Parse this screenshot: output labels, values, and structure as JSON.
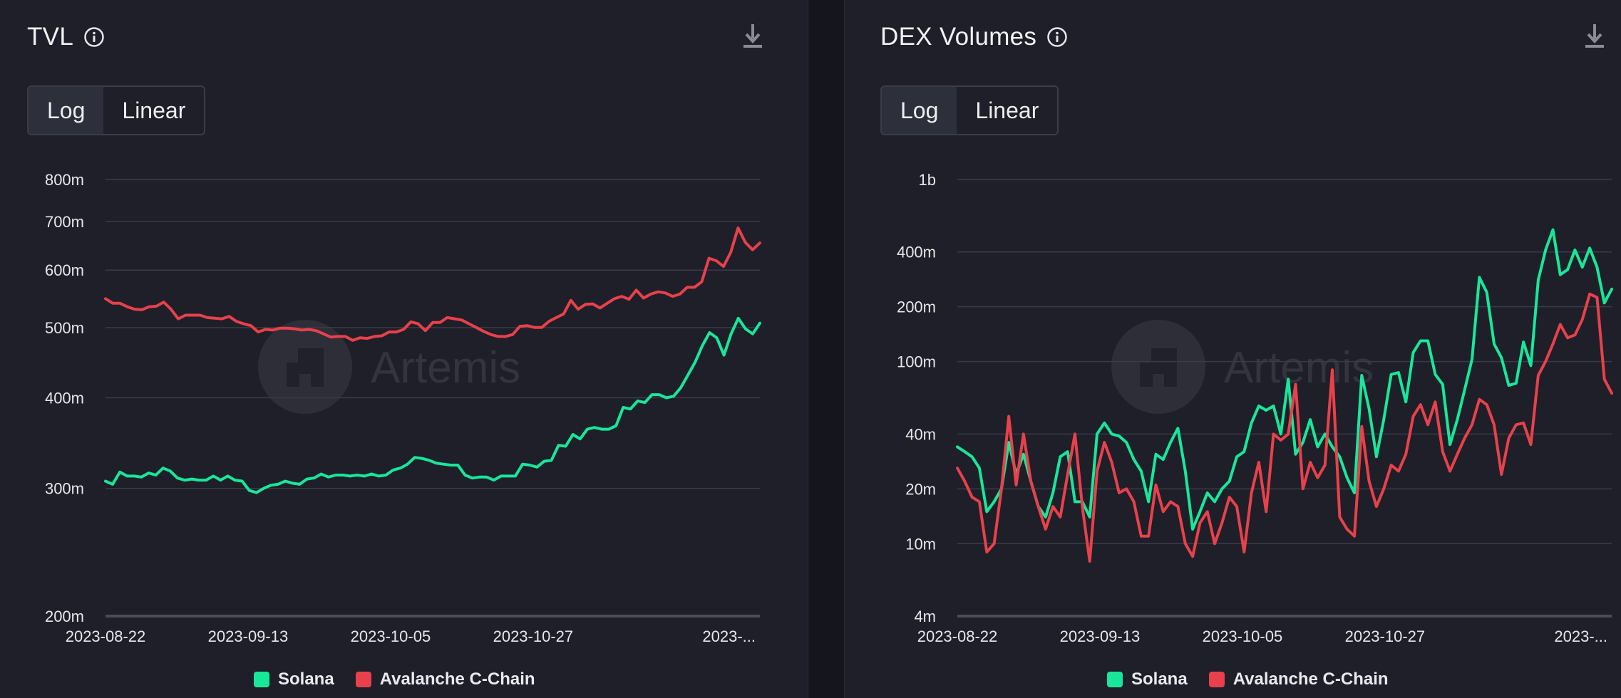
{
  "colors": {
    "solana": "#18e79a",
    "avalanche": "#e8414b",
    "grid": "#3a3b46",
    "axis_text": "#e6e7ea",
    "watermark": "#3a3b46"
  },
  "watermark_text": "Artemis",
  "panels": [
    {
      "id": "tvl",
      "title": "TVL",
      "toggle": {
        "log_label": "Log",
        "linear_label": "Linear",
        "active": "Log"
      },
      "legend": [
        {
          "name": "Solana",
          "color": "#18e79a"
        },
        {
          "name": "Avalanche C-Chain",
          "color": "#e8414b"
        }
      ]
    },
    {
      "id": "dex",
      "title": "DEX Volumes",
      "toggle": {
        "log_label": "Log",
        "linear_label": "Linear",
        "active": "Log"
      },
      "legend": [
        {
          "name": "Solana",
          "color": "#18e79a"
        },
        {
          "name": "Avalanche C-Chain",
          "color": "#e8414b"
        }
      ]
    }
  ],
  "chart_data": [
    {
      "type": "line",
      "title": "TVL",
      "yscale": "log",
      "ylim": [
        200000000,
        800000000
      ],
      "y_ticks": [
        {
          "value": 200000000,
          "label": "200m"
        },
        {
          "value": 300000000,
          "label": "300m"
        },
        {
          "value": 400000000,
          "label": "400m"
        },
        {
          "value": 500000000,
          "label": "500m"
        },
        {
          "value": 600000000,
          "label": "600m"
        },
        {
          "value": 700000000,
          "label": "700m"
        },
        {
          "value": 800000000,
          "label": "800m"
        }
      ],
      "x_range": [
        "2023-08-22",
        "2023-12-01"
      ],
      "x_ticks": [
        "2023-08-22",
        "2023-09-13",
        "2023-10-05",
        "2023-10-27",
        "2023-..."
      ],
      "grid": true,
      "legend_position": "bottom-center",
      "series": [
        {
          "name": "Solana",
          "color": "#18e79a",
          "values": [
            307000000,
            304000000,
            316000000,
            312000000,
            312000000,
            311000000,
            315000000,
            313000000,
            320000000,
            317000000,
            310000000,
            308000000,
            309000000,
            308000000,
            308000000,
            312000000,
            308000000,
            312000000,
            308000000,
            307000000,
            298000000,
            296000000,
            300000000,
            303000000,
            304000000,
            307000000,
            305000000,
            304000000,
            309000000,
            310000000,
            314000000,
            311000000,
            313000000,
            313000000,
            312000000,
            313000000,
            312000000,
            314000000,
            312000000,
            313000000,
            318000000,
            320000000,
            324000000,
            331000000,
            330000000,
            328000000,
            325000000,
            324000000,
            323000000,
            323000000,
            313000000,
            310000000,
            311000000,
            311000000,
            308000000,
            312000000,
            312000000,
            312000000,
            324000000,
            323000000,
            321000000,
            327000000,
            328000000,
            344000000,
            343000000,
            356000000,
            351000000,
            362000000,
            364000000,
            362000000,
            362000000,
            366000000,
            388000000,
            386000000,
            396000000,
            394000000,
            404000000,
            404000000,
            400000000,
            402000000,
            413000000,
            430000000,
            448000000,
            472000000,
            492000000,
            484000000,
            458000000,
            490000000,
            515000000,
            498000000,
            490000000,
            507000000
          ],
          "note_start": "2023-08-22"
        },
        {
          "name": "Avalanche C-Chain",
          "color": "#e8414b",
          "values": [
            548000000,
            540000000,
            540000000,
            534000000,
            530000000,
            529000000,
            534000000,
            535000000,
            542000000,
            530000000,
            514000000,
            520000000,
            520000000,
            520000000,
            516000000,
            515000000,
            514000000,
            518000000,
            510000000,
            506000000,
            503000000,
            493000000,
            497000000,
            496000000,
            499000000,
            499000000,
            498000000,
            496000000,
            497000000,
            495000000,
            490000000,
            485000000,
            486000000,
            486000000,
            480000000,
            484000000,
            483000000,
            486000000,
            487000000,
            493000000,
            493000000,
            497000000,
            509000000,
            506000000,
            495000000,
            508000000,
            508000000,
            516000000,
            514000000,
            512000000,
            506000000,
            500000000,
            494000000,
            489000000,
            486000000,
            486000000,
            489000000,
            502000000,
            503000000,
            500000000,
            500000000,
            510000000,
            516000000,
            522000000,
            545000000,
            530000000,
            538000000,
            539000000,
            532000000,
            540000000,
            548000000,
            552000000,
            547000000,
            563000000,
            549000000,
            556000000,
            560000000,
            558000000,
            552000000,
            556000000,
            568000000,
            568000000,
            578000000,
            623000000,
            618000000,
            607000000,
            635000000,
            686000000,
            655000000,
            640000000,
            654000000
          ]
        }
      ]
    },
    {
      "type": "line",
      "title": "DEX Volumes",
      "yscale": "log",
      "ylim": [
        4000000,
        1000000000
      ],
      "y_ticks": [
        {
          "value": 4000000,
          "label": "4m"
        },
        {
          "value": 10000000,
          "label": "10m"
        },
        {
          "value": 20000000,
          "label": "20m"
        },
        {
          "value": 40000000,
          "label": "40m"
        },
        {
          "value": 100000000,
          "label": "100m"
        },
        {
          "value": 200000000,
          "label": "200m"
        },
        {
          "value": 400000000,
          "label": "400m"
        },
        {
          "value": 1000000000,
          "label": "1b"
        }
      ],
      "x_range": [
        "2023-08-22",
        "2023-12-01"
      ],
      "x_ticks": [
        "2023-08-22",
        "2023-09-13",
        "2023-10-05",
        "2023-10-27",
        "2023-..."
      ],
      "grid": true,
      "legend_position": "bottom-center",
      "series": [
        {
          "name": "Solana",
          "color": "#18e79a",
          "values": [
            34000000,
            32000000,
            30000000,
            26000000,
            15000000,
            17000000,
            20000000,
            36000000,
            24000000,
            31000000,
            22000000,
            16000000,
            14000000,
            19000000,
            30000000,
            32000000,
            17000000,
            17000000,
            14000000,
            40000000,
            46000000,
            40000000,
            39000000,
            36000000,
            29000000,
            25000000,
            17000000,
            31000000,
            29000000,
            36000000,
            43000000,
            25000000,
            12000000,
            15000000,
            19000000,
            17000000,
            20000000,
            22000000,
            30000000,
            32000000,
            46000000,
            57000000,
            54000000,
            57000000,
            40000000,
            80000000,
            31000000,
            36000000,
            48000000,
            34000000,
            40000000,
            34000000,
            30000000,
            23000000,
            19000000,
            84000000,
            55000000,
            30000000,
            48000000,
            85000000,
            87000000,
            60000000,
            112000000,
            130000000,
            130000000,
            85000000,
            75000000,
            35000000,
            48000000,
            70000000,
            103000000,
            290000000,
            240000000,
            125000000,
            105000000,
            74000000,
            76000000,
            128000000,
            95000000,
            280000000,
            410000000,
            530000000,
            300000000,
            320000000,
            410000000,
            330000000,
            420000000,
            330000000,
            210000000,
            250000000
          ]
        },
        {
          "name": "Avalanche C-Chain",
          "color": "#e8414b",
          "values": [
            26000000,
            22000000,
            18000000,
            17000000,
            9000000,
            10000000,
            20000000,
            50000000,
            21000000,
            40000000,
            22000000,
            16000000,
            12000000,
            16000000,
            14000000,
            24000000,
            40000000,
            16000000,
            8000000,
            25000000,
            36000000,
            28000000,
            19000000,
            20000000,
            17000000,
            11000000,
            11000000,
            21000000,
            15000000,
            17000000,
            16000000,
            10000000,
            8500000,
            13000000,
            15000000,
            10000000,
            13000000,
            18000000,
            16000000,
            9000000,
            19000000,
            28000000,
            15000000,
            40000000,
            37000000,
            40000000,
            75000000,
            20000000,
            28000000,
            23000000,
            27000000,
            90000000,
            14000000,
            12000000,
            11000000,
            44000000,
            22000000,
            16000000,
            20000000,
            27000000,
            25000000,
            31000000,
            50000000,
            58000000,
            45000000,
            60000000,
            32000000,
            25000000,
            31000000,
            38000000,
            45000000,
            62000000,
            58000000,
            45000000,
            24000000,
            38000000,
            45000000,
            46000000,
            35000000,
            84000000,
            100000000,
            125000000,
            160000000,
            135000000,
            140000000,
            170000000,
            235000000,
            225000000,
            80000000,
            67000000
          ]
        }
      ]
    }
  ]
}
